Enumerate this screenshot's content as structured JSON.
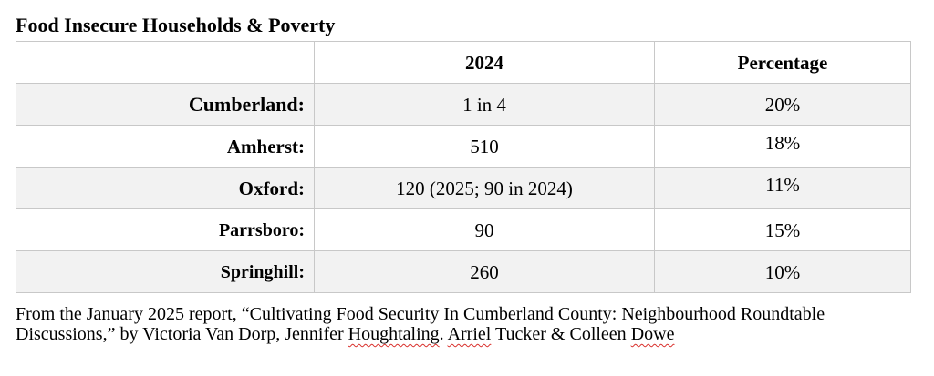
{
  "title": "Food Insecure Households & Poverty",
  "table": {
    "headers": [
      "",
      "2024",
      "Percentage"
    ],
    "rows": [
      {
        "label": "Cumberland:",
        "value": "1 in 4",
        "percentage": "20%"
      },
      {
        "label": "Amherst:",
        "value": "510",
        "percentage": "18%"
      },
      {
        "label": "Oxford:",
        "value": "120 (2025; 90 in 2024)",
        "percentage": "11%"
      },
      {
        "label": "Parrsboro:",
        "value": "90",
        "percentage": "15%"
      },
      {
        "label": "Springhill:",
        "value": "260",
        "percentage": "10%"
      }
    ]
  },
  "source": {
    "line1": "From the January 2025 report, “Cultivating Food Security In Cumberland County: Neighbourhood Roundtable",
    "line2_start": "Discussions,” by Victoria Van Dorp, Jennifer ",
    "name_houghtaling": "Houghtaling",
    "sep1": ". ",
    "name_arriel": "Arriel",
    "sep2": " ",
    "name_tucker": "Tucker",
    "sep3": " & Colleen ",
    "name_dowe": "Dowe"
  }
}
